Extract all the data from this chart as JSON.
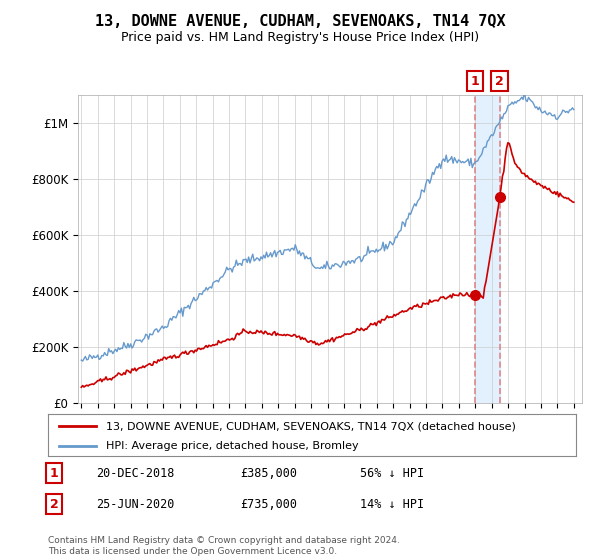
{
  "title": "13, DOWNE AVENUE, CUDHAM, SEVENOAKS, TN14 7QX",
  "subtitle": "Price paid vs. HM Land Registry's House Price Index (HPI)",
  "legend_line1": "13, DOWNE AVENUE, CUDHAM, SEVENOAKS, TN14 7QX (detached house)",
  "legend_line2": "HPI: Average price, detached house, Bromley",
  "annotation1_label": "1",
  "annotation1_date": "20-DEC-2018",
  "annotation1_price": "£385,000",
  "annotation1_hpi": "56% ↓ HPI",
  "annotation2_label": "2",
  "annotation2_date": "25-JUN-2020",
  "annotation2_price": "£735,000",
  "annotation2_hpi": "14% ↓ HPI",
  "footer": "Contains HM Land Registry data © Crown copyright and database right 2024.\nThis data is licensed under the Open Government Licence v3.0.",
  "house_color": "#cc0000",
  "hpi_color": "#6699cc",
  "annotation_box_color": "#cc0000",
  "dashed_line_color": "#dd8888",
  "highlight_color": "#ddeeff",
  "ylim": [
    0,
    1100000
  ],
  "yticks": [
    0,
    200000,
    400000,
    600000,
    800000,
    1000000
  ],
  "ytick_labels": [
    "£0",
    "£200K",
    "£400K",
    "£600K",
    "£800K",
    "£1M"
  ],
  "sale1_year": 2018.96,
  "sale1_price": 385000,
  "sale2_year": 2020.48,
  "sale2_price": 735000
}
